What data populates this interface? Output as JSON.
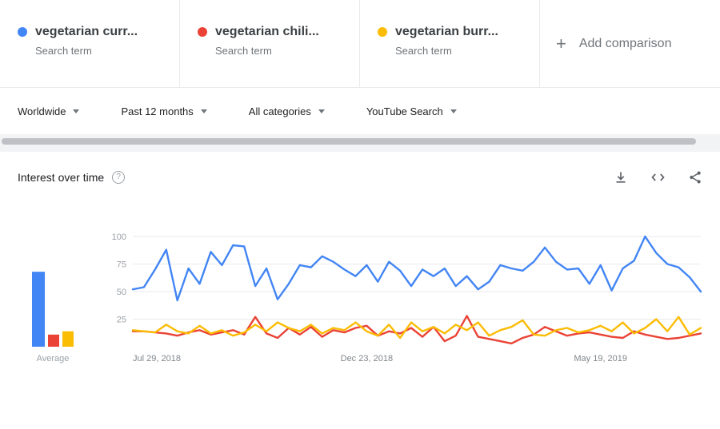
{
  "header": {
    "terms": [
      {
        "label": "vegetarian curr...",
        "sublabel": "Search term",
        "color": "#4285f4"
      },
      {
        "label": "vegetarian chili...",
        "sublabel": "Search term",
        "color": "#ea4335"
      },
      {
        "label": "vegetarian burr...",
        "sublabel": "Search term",
        "color": "#fbbc04"
      }
    ],
    "add_comparison": {
      "plus": "+",
      "label": "Add comparison"
    }
  },
  "filters": [
    {
      "label": "Worldwide"
    },
    {
      "label": "Past 12 months"
    },
    {
      "label": "All categories"
    },
    {
      "label": "YouTube Search"
    }
  ],
  "panel": {
    "title": "Interest over time",
    "help_glyph": "?"
  },
  "chart_data": {
    "type": "line",
    "title": "Interest over time",
    "ylim": [
      0,
      100
    ],
    "yticks": [
      25,
      50,
      75,
      100
    ],
    "grid": "horizontal",
    "legend_position": "none",
    "xticks": [
      {
        "label": "Jul 29, 2018",
        "week": 0
      },
      {
        "label": "Dec 23, 2018",
        "week": 21
      },
      {
        "label": "May 19, 2019",
        "week": 42
      }
    ],
    "average": {
      "label": "Average",
      "values": [
        68,
        11,
        14
      ]
    },
    "series": [
      {
        "id": "vegetarian-curry",
        "name": "vegetarian curr...",
        "color": "#4285f4",
        "values": [
          52,
          54,
          70,
          88,
          42,
          71,
          57,
          86,
          74,
          92,
          91,
          55,
          71,
          43,
          57,
          74,
          72,
          82,
          77,
          70,
          64,
          74,
          59,
          77,
          69,
          55,
          70,
          64,
          71,
          55,
          64,
          52,
          59,
          74,
          71,
          69,
          77,
          90,
          77,
          70,
          71,
          57,
          74,
          51,
          71,
          78,
          100,
          85,
          75,
          72,
          63,
          50
        ]
      },
      {
        "id": "vegetarian-chili",
        "name": "vegetarian chili...",
        "color": "#ea4335",
        "values": [
          14,
          14,
          13,
          12,
          10,
          13,
          15,
          11,
          13,
          15,
          11,
          27,
          12,
          8,
          17,
          11,
          18,
          9,
          15,
          13,
          17,
          19,
          10,
          14,
          12,
          17,
          9,
          18,
          5,
          10,
          28,
          9,
          7,
          5,
          3,
          8,
          11,
          18,
          14,
          10,
          12,
          13,
          11,
          9,
          8,
          14,
          11,
          9,
          7,
          8,
          10,
          12
        ]
      },
      {
        "id": "vegetarian-burrito",
        "name": "vegetarian burr...",
        "color": "#fbbc04",
        "values": [
          15,
          14,
          13,
          20,
          14,
          12,
          19,
          12,
          15,
          10,
          13,
          20,
          14,
          22,
          17,
          14,
          20,
          12,
          17,
          15,
          22,
          14,
          10,
          20,
          8,
          22,
          14,
          18,
          12,
          20,
          15,
          22,
          10,
          15,
          18,
          24,
          11,
          10,
          15,
          17,
          13,
          15,
          19,
          14,
          22,
          12,
          17,
          25,
          14,
          27,
          11,
          17
        ]
      }
    ]
  }
}
